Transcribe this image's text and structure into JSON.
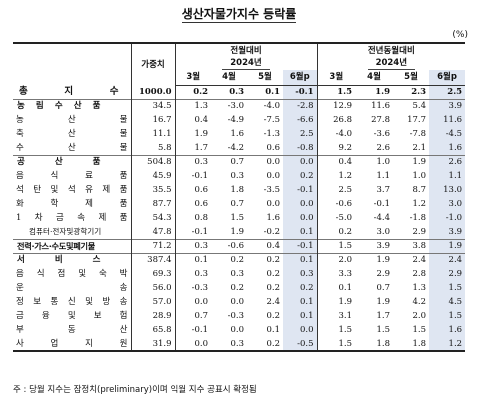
{
  "title": "생산자물가지수 등락률",
  "unit": "(%)",
  "headers": {
    "weight": "가중치",
    "mom": "전월대비",
    "yoy": "전년동월대비",
    "year": "2024년",
    "months": [
      "3월",
      "4월",
      "5월",
      "6월p"
    ]
  },
  "rows": [
    {
      "label": "총 지 수",
      "kind": "top",
      "w": "1000.0",
      "m": [
        "0.2",
        "0.3",
        "0.1",
        "-0.1"
      ],
      "y": [
        "1.5",
        "1.9",
        "2.3",
        "2.5"
      ]
    },
    {
      "label": "농 림 수 산 품",
      "kind": "grp",
      "w": "34.5",
      "m": [
        "1.3",
        "-3.0",
        "-4.0",
        "-2.8"
      ],
      "y": [
        "12.9",
        "11.6",
        "5.4",
        "3.9"
      ]
    },
    {
      "label": "농 산 물",
      "kind": "sub",
      "w": "16.7",
      "m": [
        "0.4",
        "-4.9",
        "-7.5",
        "-6.6"
      ],
      "y": [
        "26.8",
        "27.8",
        "17.7",
        "11.6"
      ]
    },
    {
      "label": "축 산 물",
      "kind": "sub",
      "w": "11.1",
      "m": [
        "1.9",
        "1.6",
        "-1.3",
        "2.5"
      ],
      "y": [
        "-4.0",
        "-3.6",
        "-7.8",
        "-4.5"
      ]
    },
    {
      "label": "수 산 물",
      "kind": "sub",
      "w": "5.8",
      "m": [
        "1.7",
        "-4.2",
        "0.6",
        "-0.8"
      ],
      "y": [
        "9.2",
        "2.6",
        "2.1",
        "1.6"
      ]
    },
    {
      "label": "공 산 품",
      "kind": "grp",
      "w": "504.8",
      "m": [
        "0.3",
        "0.7",
        "0.0",
        "0.0"
      ],
      "y": [
        "0.4",
        "1.0",
        "1.9",
        "2.6"
      ]
    },
    {
      "label": "음 식 료 품",
      "kind": "sub",
      "w": "45.9",
      "m": [
        "-0.1",
        "0.3",
        "0.0",
        "0.2"
      ],
      "y": [
        "1.2",
        "1.1",
        "1.0",
        "1.1"
      ]
    },
    {
      "label": "석 탄 및 석 유 제 품",
      "kind": "sub",
      "w": "35.5",
      "m": [
        "0.6",
        "1.8",
        "-3.5",
        "-0.1"
      ],
      "y": [
        "2.5",
        "3.7",
        "8.7",
        "13.0"
      ]
    },
    {
      "label": "화 학 제 품",
      "kind": "sub",
      "w": "87.7",
      "m": [
        "0.6",
        "0.7",
        "0.0",
        "0.0"
      ],
      "y": [
        "-0.6",
        "-0.1",
        "1.2",
        "3.0"
      ]
    },
    {
      "label": "1 차 금 속 제 품",
      "kind": "sub",
      "w": "54.3",
      "m": [
        "0.8",
        "1.5",
        "1.6",
        "0.0"
      ],
      "y": [
        "-5.0",
        "-4.4",
        "-1.8",
        "-1.0"
      ]
    },
    {
      "label": "컴퓨터·전자및광학기기",
      "kind": "small",
      "w": "47.8",
      "m": [
        "-0.1",
        "1.9",
        "-0.2",
        "0.1"
      ],
      "y": [
        "0.2",
        "3.0",
        "2.9",
        "3.9"
      ]
    },
    {
      "label": "전력·가스·수도및폐기물",
      "kind": "elec",
      "w": "71.2",
      "m": [
        "0.3",
        "-0.6",
        "0.4",
        "-0.1"
      ],
      "y": [
        "1.5",
        "3.9",
        "3.8",
        "1.9"
      ]
    },
    {
      "label": "서 비 스",
      "kind": "grp",
      "w": "387.4",
      "m": [
        "0.1",
        "0.2",
        "0.2",
        "0.1"
      ],
      "y": [
        "2.0",
        "1.9",
        "2.4",
        "2.4"
      ]
    },
    {
      "label": "음 식 점 및 숙 박",
      "kind": "sub",
      "w": "69.3",
      "m": [
        "0.3",
        "0.3",
        "0.2",
        "0.3"
      ],
      "y": [
        "3.3",
        "2.9",
        "2.8",
        "2.9"
      ]
    },
    {
      "label": "운 송",
      "kind": "sub",
      "w": "56.0",
      "m": [
        "-0.3",
        "0.2",
        "0.2",
        "0.2"
      ],
      "y": [
        "0.1",
        "0.7",
        "1.3",
        "1.5"
      ]
    },
    {
      "label": "정 보 통 신 및 방 송",
      "kind": "sub",
      "w": "57.0",
      "m": [
        "0.0",
        "0.0",
        "2.4",
        "0.1"
      ],
      "y": [
        "1.9",
        "1.9",
        "4.2",
        "4.5"
      ]
    },
    {
      "label": "금 융 및 보 험",
      "kind": "sub",
      "w": "28.9",
      "m": [
        "0.7",
        "-0.3",
        "0.2",
        "0.1"
      ],
      "y": [
        "3.1",
        "1.7",
        "2.0",
        "1.5"
      ]
    },
    {
      "label": "부 동 산",
      "kind": "sub",
      "w": "65.8",
      "m": [
        "-0.1",
        "0.0",
        "0.1",
        "0.0"
      ],
      "y": [
        "1.5",
        "1.5",
        "1.5",
        "1.6"
      ]
    },
    {
      "label": "사 업 지 원",
      "kind": "sub",
      "w": "31.9",
      "m": [
        "0.0",
        "0.3",
        "0.2",
        "-0.5"
      ],
      "y": [
        "1.5",
        "1.8",
        "1.8",
        "1.2"
      ]
    }
  ],
  "footnote": "주 : 당월 지수는 잠정치(preliminary)이며 익월 지수 공표시 확정됨"
}
